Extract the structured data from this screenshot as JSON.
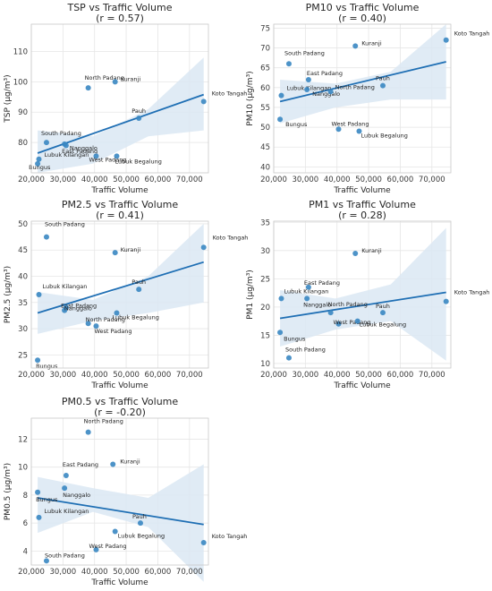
{
  "chart_data": [
    {
      "type": "scatter",
      "title": "TSP vs Traffic Volume",
      "subtitle": "(r = 0.57)",
      "xlabel": "Traffic Volume",
      "ylabel": "TSP (µg/m³)",
      "xlim": [
        20000,
        76000
      ],
      "ylim": [
        70,
        119
      ],
      "xticks": [
        20000,
        30000,
        40000,
        50000,
        60000,
        70000
      ],
      "yticks": [
        80,
        90,
        100,
        110
      ],
      "xtick_labels": [
        "20,000",
        "30,000",
        "40,000",
        "50,000",
        "60,000",
        "70,000"
      ],
      "ytick_labels": [
        "80",
        "90",
        "100",
        "110"
      ],
      "grid": true,
      "points": [
        {
          "label": "Bungus",
          "x": 22000,
          "y": 73.0
        },
        {
          "label": "Lubuk Kilangan",
          "x": 22400,
          "y": 74.5
        },
        {
          "label": "South Padang",
          "x": 24800,
          "y": 80.0
        },
        {
          "label": "East Padang",
          "x": 30500,
          "y": 79.5
        },
        {
          "label": "Nanggalo",
          "x": 31000,
          "y": 79.0
        },
        {
          "label": "North Padang",
          "x": 38000,
          "y": 98.0
        },
        {
          "label": "West Padang",
          "x": 40500,
          "y": 75.5
        },
        {
          "label": "Kuranji",
          "x": 46500,
          "y": 100.0
        },
        {
          "label": "Lubuk Begalung",
          "x": 47000,
          "y": 75.5
        },
        {
          "label": "Pauh",
          "x": 54000,
          "y": 88.0
        },
        {
          "label": "Koto Tangah",
          "x": 74500,
          "y": 93.5
        }
      ],
      "trend": {
        "x": [
          22000,
          74500
        ],
        "y": [
          76.5,
          95.8
        ]
      },
      "ci_upper": [
        84,
        82,
        91,
        108
      ],
      "ci_lower": [
        70,
        73,
        82,
        84
      ]
    },
    {
      "type": "scatter",
      "title": "PM10 vs Traffic Volume",
      "subtitle": "(r = 0.40)",
      "xlabel": "Traffic Volume",
      "ylabel": "PM10 (µg/m³)",
      "xlim": [
        20000,
        76000
      ],
      "ylim": [
        38.5,
        76
      ],
      "xticks": [
        20000,
        30000,
        40000,
        50000,
        60000,
        70000
      ],
      "yticks": [
        40,
        45,
        50,
        55,
        60,
        65,
        70,
        75
      ],
      "xtick_labels": [
        "20,000",
        "30,000",
        "40,000",
        "50,000",
        "60,000",
        "70,000"
      ],
      "ytick_labels": [
        "40",
        "45",
        "50",
        "55",
        "60",
        "65",
        "70",
        "75"
      ],
      "grid": true,
      "points": [
        {
          "label": "Bungus",
          "x": 22000,
          "y": 52.0
        },
        {
          "label": "Lubuk Kilangan",
          "x": 22400,
          "y": 58.0
        },
        {
          "label": "South Padang",
          "x": 24800,
          "y": 66.0
        },
        {
          "label": "East Padang",
          "x": 31000,
          "y": 62.0
        },
        {
          "label": "Nanggalo",
          "x": 30500,
          "y": 59.5
        },
        {
          "label": "North Padang",
          "x": 38000,
          "y": 59.0
        },
        {
          "label": "West Padang",
          "x": 40500,
          "y": 49.5
        },
        {
          "label": "Kuranji",
          "x": 45800,
          "y": 70.5
        },
        {
          "label": "Lubuk Begalung",
          "x": 47000,
          "y": 49.0
        },
        {
          "label": "Pauh",
          "x": 54500,
          "y": 60.5
        },
        {
          "label": "Koto Tangah",
          "x": 74500,
          "y": 72.0
        }
      ],
      "trend": {
        "x": [
          22000,
          74500
        ],
        "y": [
          56.5,
          66.5
        ]
      },
      "ci_upper": [
        62,
        61,
        64,
        76
      ],
      "ci_lower": [
        51,
        55,
        57,
        57
      ]
    },
    {
      "type": "scatter",
      "title": "PM2.5 vs Traffic Volume",
      "subtitle": "(r = 0.41)",
      "xlabel": "Traffic Volume",
      "ylabel": "PM2.5 (µg/m³)",
      "xlim": [
        20000,
        76000
      ],
      "ylim": [
        22.5,
        50.5
      ],
      "xticks": [
        20000,
        30000,
        40000,
        50000,
        60000,
        70000
      ],
      "yticks": [
        25,
        30,
        35,
        40,
        45,
        50
      ],
      "xtick_labels": [
        "20,000",
        "30,000",
        "40,000",
        "50,000",
        "60,000",
        "70,000"
      ],
      "ytick_labels": [
        "25",
        "30",
        "35",
        "40",
        "45",
        "50"
      ],
      "grid": true,
      "points": [
        {
          "label": "Bungus",
          "x": 22000,
          "y": 24.0
        },
        {
          "label": "Lubuk Kilangan",
          "x": 22400,
          "y": 36.5
        },
        {
          "label": "South Padang",
          "x": 24800,
          "y": 47.5
        },
        {
          "label": "East Padang",
          "x": 30500,
          "y": 33.5
        },
        {
          "label": "Nanggalo",
          "x": 31000,
          "y": 34.0
        },
        {
          "label": "North Padang",
          "x": 38000,
          "y": 31.0
        },
        {
          "label": "West Padang",
          "x": 40500,
          "y": 30.5
        },
        {
          "label": "Kuranji",
          "x": 46500,
          "y": 44.5
        },
        {
          "label": "Lubuk Begalung",
          "x": 47000,
          "y": 33.0
        },
        {
          "label": "Pauh",
          "x": 54000,
          "y": 37.5
        },
        {
          "label": "Koto Tangah",
          "x": 74500,
          "y": 45.5
        }
      ],
      "trend": {
        "x": [
          22000,
          74500
        ],
        "y": [
          33.0,
          42.7
        ]
      },
      "ci_upper": [
        37,
        35.5,
        40,
        50
      ],
      "ci_lower": [
        29,
        31.5,
        33,
        35
      ]
    },
    {
      "type": "scatter",
      "title": "PM1 vs Traffic Volume",
      "subtitle": "(r = 0.28)",
      "xlabel": "Traffic Volume",
      "ylabel": "PM1 (µg/m³)",
      "xlim": [
        20000,
        76000
      ],
      "ylim": [
        9.2,
        35.2
      ],
      "xticks": [
        20000,
        30000,
        40000,
        50000,
        60000,
        70000
      ],
      "yticks": [
        10,
        15,
        20,
        25,
        30,
        35
      ],
      "xtick_labels": [
        "20,000",
        "30,000",
        "40,000",
        "50,000",
        "60,000",
        "70,000"
      ],
      "ytick_labels": [
        "10",
        "15",
        "20",
        "25",
        "30",
        "35"
      ],
      "grid": true,
      "points": [
        {
          "label": "Bungus",
          "x": 22000,
          "y": 15.5
        },
        {
          "label": "Lubuk Kilangan",
          "x": 22400,
          "y": 21.5
        },
        {
          "label": "South Padang",
          "x": 24800,
          "y": 11.0
        },
        {
          "label": "East Padang",
          "x": 31000,
          "y": 23.5
        },
        {
          "label": "Nanggalo",
          "x": 30500,
          "y": 21.5
        },
        {
          "label": "North Padang",
          "x": 38000,
          "y": 19.0
        },
        {
          "label": "West Padang",
          "x": 40500,
          "y": 17.0
        },
        {
          "label": "Kuranji",
          "x": 45800,
          "y": 29.5
        },
        {
          "label": "Lubuk Begalung",
          "x": 46500,
          "y": 17.5
        },
        {
          "label": "Pauh",
          "x": 54500,
          "y": 19.0
        },
        {
          "label": "Koto Tangah",
          "x": 74500,
          "y": 21.0
        }
      ],
      "trend": {
        "x": [
          22000,
          74500
        ],
        "y": [
          18.0,
          22.6
        ]
      },
      "ci_upper": [
        23,
        21.5,
        24,
        34
      ],
      "ci_lower": [
        13,
        16,
        17.5,
        10.5
      ]
    },
    {
      "type": "scatter",
      "title": "PM0.5 vs Traffic Volume",
      "subtitle": "(r = -0.20)",
      "xlabel": "Traffic Volume",
      "ylabel": "PM0.5 (µg/m³)",
      "xlim": [
        20000,
        76000
      ],
      "ylim": [
        3.0,
        13.5
      ],
      "xticks": [
        20000,
        30000,
        40000,
        50000,
        60000,
        70000
      ],
      "yticks": [
        4,
        6,
        8,
        10,
        12
      ],
      "xtick_labels": [
        "20,000",
        "30,000",
        "40,000",
        "50,000",
        "60,000",
        "70,000"
      ],
      "ytick_labels": [
        "4",
        "6",
        "8",
        "10",
        "12"
      ],
      "grid": true,
      "points": [
        {
          "label": "Bungus",
          "x": 22000,
          "y": 8.2
        },
        {
          "label": "Lubuk Kilangan",
          "x": 22400,
          "y": 6.4
        },
        {
          "label": "South Padang",
          "x": 24800,
          "y": 3.3
        },
        {
          "label": "East Padang",
          "x": 31000,
          "y": 9.4
        },
        {
          "label": "Nanggalo",
          "x": 30500,
          "y": 8.5
        },
        {
          "label": "North Padang",
          "x": 38000,
          "y": 12.5
        },
        {
          "label": "West Padang",
          "x": 40500,
          "y": 4.1
        },
        {
          "label": "Kuranji",
          "x": 45800,
          "y": 10.2
        },
        {
          "label": "Lubuk Begalung",
          "x": 46500,
          "y": 5.4
        },
        {
          "label": "Pauh",
          "x": 54500,
          "y": 6.0
        },
        {
          "label": "Koto Tangah",
          "x": 74500,
          "y": 4.6
        }
      ],
      "trend": {
        "x": [
          22000,
          74500
        ],
        "y": [
          7.8,
          5.9
        ]
      },
      "ci_upper": [
        9.3,
        8.5,
        7.8,
        10.2
      ],
      "ci_lower": [
        5.3,
        6.8,
        5.7,
        1.8
      ]
    }
  ],
  "colors": {
    "point": "#3a87c2",
    "trend": "#1f6fb4",
    "ci_band": "#dbe7f3",
    "grid": "#e6e6e6",
    "axis": "#c8c8c8",
    "text": "#262626"
  }
}
